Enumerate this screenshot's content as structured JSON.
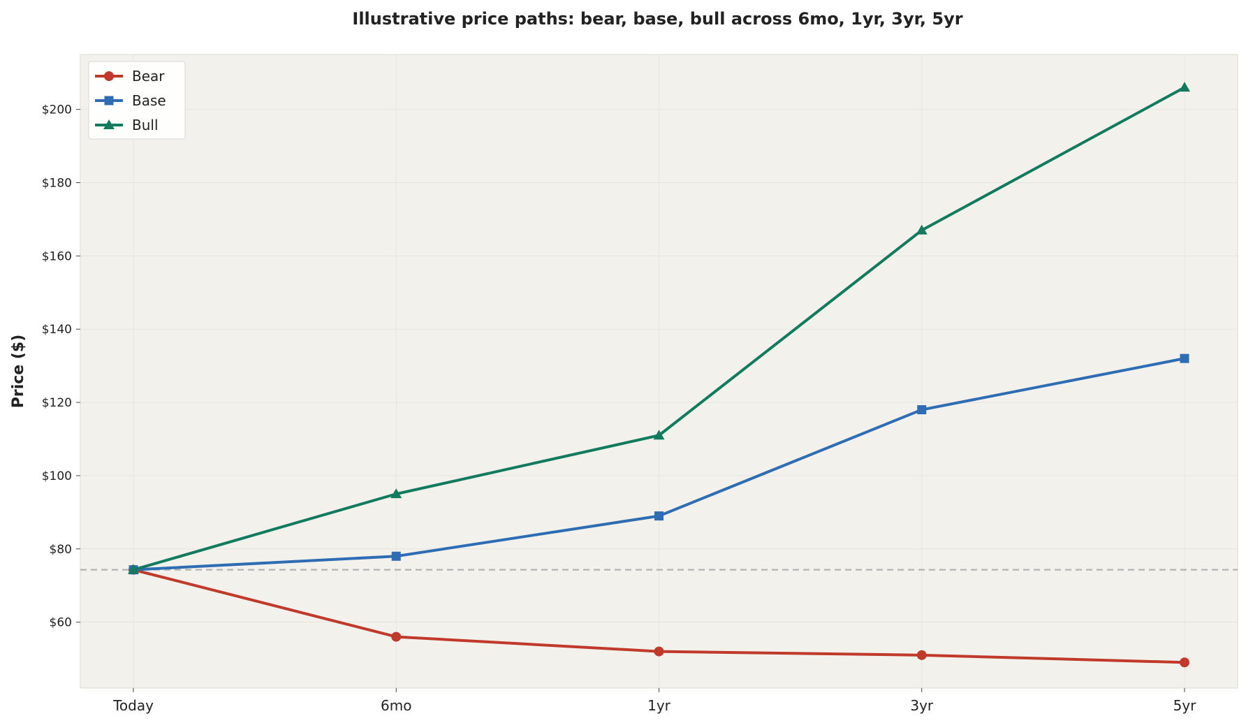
{
  "chart_data": {
    "type": "line",
    "title": "Illustrative price paths: bear, base, bull across 6mo, 1yr, 3yr, 5yr",
    "xlabel": "",
    "ylabel": "Price ($)",
    "categories": [
      "Today",
      "6mo",
      "1yr",
      "3yr",
      "5yr"
    ],
    "ylim": [
      42,
      215
    ],
    "yticks": [
      60,
      80,
      100,
      120,
      140,
      160,
      180,
      200
    ],
    "ytick_labels": [
      "$60",
      "$80",
      "$100",
      "$120",
      "$140",
      "$160",
      "$180",
      "$200"
    ],
    "reference_line": {
      "value": 74.3,
      "style": "dashed"
    },
    "grid": true,
    "legend_position": "top-left",
    "series": [
      {
        "name": "Bear",
        "values": [
          74.3,
          56,
          52,
          51,
          49
        ],
        "color": "#c0392b",
        "marker": "circle"
      },
      {
        "name": "Base",
        "values": [
          74.3,
          78,
          89,
          118,
          132
        ],
        "color": "#2e6db4",
        "marker": "square"
      },
      {
        "name": "Bull",
        "values": [
          74.3,
          95,
          111,
          167,
          206
        ],
        "color": "#127a5e",
        "marker": "triangle"
      }
    ]
  }
}
